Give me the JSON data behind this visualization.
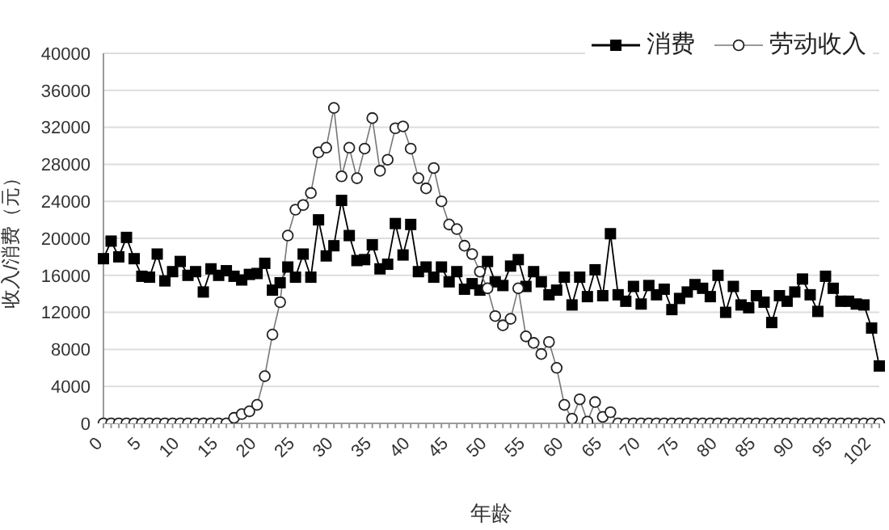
{
  "chart_data": {
    "type": "line",
    "xlabel": "年龄",
    "ylabel": "收入/消费（元）",
    "categories": [
      "0",
      null,
      null,
      null,
      null,
      "5",
      null,
      null,
      null,
      null,
      "10",
      null,
      null,
      null,
      null,
      "15",
      null,
      null,
      null,
      null,
      "20",
      null,
      null,
      null,
      null,
      "25",
      null,
      null,
      null,
      null,
      "30",
      null,
      null,
      null,
      null,
      "35",
      null,
      null,
      null,
      null,
      "40",
      null,
      null,
      null,
      null,
      "45",
      null,
      null,
      null,
      null,
      "50",
      null,
      null,
      null,
      null,
      "55",
      null,
      null,
      null,
      null,
      "60",
      null,
      null,
      null,
      null,
      "65",
      null,
      null,
      null,
      null,
      "70",
      null,
      null,
      null,
      null,
      "75",
      null,
      null,
      null,
      null,
      "80",
      null,
      null,
      null,
      null,
      "85",
      null,
      null,
      null,
      null,
      "90",
      null,
      null,
      null,
      null,
      "95",
      null,
      null,
      null,
      null,
      "102",
      null
    ],
    "series": [
      {
        "name": "消费",
        "color": "#000000",
        "marker": "square",
        "values": [
          17800,
          19700,
          18000,
          20100,
          17800,
          15900,
          15800,
          18300,
          15400,
          16400,
          17500,
          16000,
          16400,
          14200,
          16700,
          16000,
          16500,
          15900,
          15500,
          16100,
          16200,
          17300,
          14400,
          15200,
          16900,
          15800,
          18300,
          15800,
          22000,
          18100,
          19200,
          24100,
          20300,
          17600,
          17700,
          19300,
          16700,
          17200,
          21600,
          18200,
          21500,
          16400,
          16900,
          15800,
          16900,
          15300,
          16400,
          14500,
          15100,
          14400,
          17500,
          15300,
          14900,
          17000,
          17700,
          14800,
          16400,
          15300,
          13900,
          14400,
          15800,
          12800,
          15800,
          13700,
          16600,
          13800,
          20500,
          13900,
          13200,
          14800,
          12900,
          14900,
          13900,
          14500,
          12300,
          13500,
          14200,
          15000,
          14600,
          13700,
          16000,
          12000,
          14800,
          12800,
          12500,
          13800,
          13100,
          10900,
          13800,
          13200,
          14200,
          15600,
          13900,
          12100,
          15900,
          14600,
          13200,
          13200,
          12900,
          12800,
          10300,
          6200
        ]
      },
      {
        "name": "劳动收入",
        "color": "#777777",
        "marker": "circle",
        "values": [
          0,
          0,
          0,
          0,
          0,
          0,
          0,
          0,
          0,
          0,
          0,
          0,
          0,
          0,
          0,
          0,
          0,
          600,
          1000,
          1300,
          2000,
          5100,
          9600,
          13100,
          20300,
          23100,
          23600,
          24900,
          29300,
          29800,
          34100,
          26700,
          29800,
          26500,
          29700,
          33000,
          27300,
          28500,
          31900,
          32100,
          29700,
          26500,
          25400,
          27600,
          24000,
          21500,
          21000,
          19200,
          18300,
          16400,
          14600,
          11600,
          10600,
          11300,
          14600,
          9400,
          8700,
          7500,
          8800,
          6000,
          2000,
          500,
          2600,
          200,
          2300,
          700,
          1200,
          0,
          0,
          0,
          0,
          0,
          0,
          0,
          0,
          0,
          0,
          0,
          0,
          0,
          0,
          0,
          0,
          0,
          0,
          0,
          0,
          0,
          0,
          0,
          0,
          0,
          0,
          0,
          0,
          0,
          0,
          0,
          0,
          0,
          0,
          0
        ]
      }
    ],
    "ylim": [
      0,
      40000
    ],
    "yticks": [
      0,
      4000,
      8000,
      12000,
      16000,
      20000,
      24000,
      28000,
      32000,
      36000,
      40000
    ],
    "grid": "y",
    "legend": "top right",
    "line_style": "solid"
  }
}
